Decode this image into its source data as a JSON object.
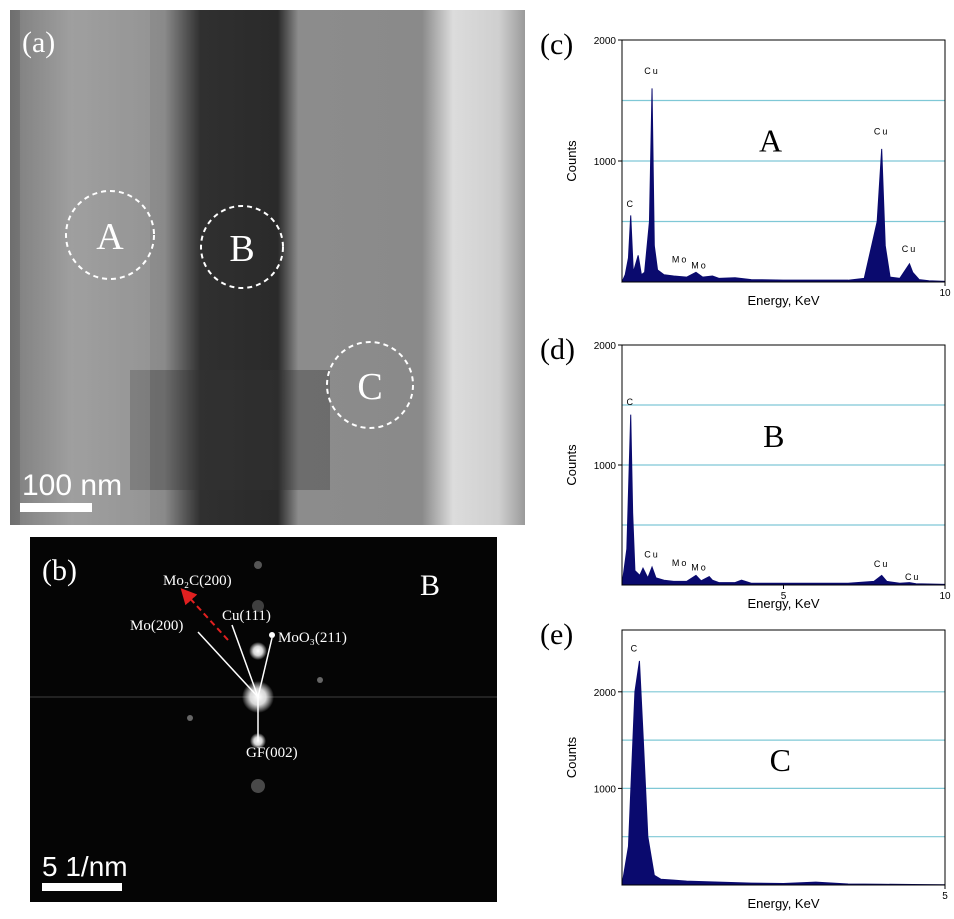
{
  "panel_a": {
    "label": "(a)",
    "regions": [
      "A",
      "B",
      "C"
    ],
    "scale_bar": "100 nm"
  },
  "panel_b": {
    "label": "(b)",
    "region": "B",
    "scale_bar": "5 1/nm",
    "annotations": [
      "Mo₂C(200)",
      "Cu(111)",
      "Mo(200)",
      "MoO₃(211)",
      "GF(002)"
    ]
  },
  "chart_data": [
    {
      "type": "area",
      "panel": "(c)",
      "label": "A",
      "x_label": "Energy, KeV",
      "y_label": "Counts",
      "color": "#0a0a6e",
      "grid_color": "#7fc8d6",
      "xlim": [
        0,
        10
      ],
      "xticks": [
        10
      ],
      "ylim": [
        0,
        2000
      ],
      "yticks": [
        1000,
        2000
      ],
      "grid_lines": [
        500,
        1000,
        1500
      ],
      "x": [
        0,
        0.1,
        0.2,
        0.27,
        0.35,
        0.5,
        0.6,
        0.7,
        0.85,
        0.93,
        1.0,
        1.1,
        1.3,
        1.6,
        2.0,
        2.29,
        2.5,
        2.8,
        3.0,
        3.5,
        4,
        5,
        6,
        7,
        7.5,
        7.9,
        8.04,
        8.15,
        8.3,
        8.6,
        8.9,
        9.0,
        9.2,
        9.5,
        10
      ],
      "values": [
        0,
        60,
        200,
        550,
        80,
        220,
        60,
        80,
        500,
        1600,
        300,
        100,
        60,
        50,
        40,
        80,
        40,
        50,
        30,
        35,
        20,
        15,
        15,
        15,
        30,
        500,
        1100,
        300,
        40,
        30,
        150,
        80,
        20,
        10,
        5
      ],
      "annotations": [
        {
          "text": "C",
          "x": 0.27,
          "y": 620
        },
        {
          "text": "Cu",
          "x": 0.93,
          "y": 1720
        },
        {
          "text": "Mo",
          "x": 1.8,
          "y": 160
        },
        {
          "text": "Mo",
          "x": 2.4,
          "y": 110
        },
        {
          "text": "Cu",
          "x": 8.04,
          "y": 1220
        },
        {
          "text": "Cu",
          "x": 8.9,
          "y": 250
        }
      ],
      "label_pos": [
        4.6,
        1080
      ]
    },
    {
      "type": "area",
      "panel": "(d)",
      "label": "B",
      "x_label": "Energy, KeV",
      "y_label": "Counts",
      "color": "#0a0a6e",
      "grid_color": "#7fc8d6",
      "xlim": [
        0,
        10
      ],
      "xticks": [
        5,
        10
      ],
      "ylim": [
        0,
        2000
      ],
      "yticks": [
        1000,
        2000
      ],
      "grid_lines": [
        500,
        1000,
        1500
      ],
      "x": [
        0,
        0.15,
        0.27,
        0.33,
        0.4,
        0.55,
        0.65,
        0.8,
        0.93,
        1.05,
        1.3,
        1.6,
        2.0,
        2.29,
        2.45,
        2.7,
        2.8,
        3.0,
        3.5,
        3.7,
        4,
        5,
        6,
        7,
        7.8,
        8.04,
        8.2,
        8.6,
        8.9,
        9.1,
        10
      ],
      "values": [
        0,
        300,
        1420,
        600,
        120,
        80,
        140,
        60,
        150,
        60,
        40,
        30,
        30,
        80,
        35,
        70,
        40,
        20,
        20,
        40,
        15,
        15,
        15,
        15,
        30,
        80,
        30,
        15,
        20,
        10,
        5
      ],
      "annotations": [
        {
          "text": "C",
          "x": 0.27,
          "y": 1500
        },
        {
          "text": "Cu",
          "x": 0.93,
          "y": 230
        },
        {
          "text": "Mo",
          "x": 1.8,
          "y": 160
        },
        {
          "text": "Mo",
          "x": 2.4,
          "y": 120
        },
        {
          "text": "Cu",
          "x": 8.04,
          "y": 150
        },
        {
          "text": "Cu",
          "x": 9.0,
          "y": 40
        }
      ],
      "label_pos": [
        4.7,
        1150
      ]
    },
    {
      "type": "area",
      "panel": "(e)",
      "label": "C",
      "x_label": "Energy, KeV",
      "y_label": "Counts",
      "color": "#0a0a6e",
      "grid_color": "#7fc8d6",
      "xlim": [
        0,
        5
      ],
      "xticks": [
        5
      ],
      "ylim": [
        0,
        2640
      ],
      "yticks": [
        1000,
        2000
      ],
      "grid_lines": [
        500,
        1000,
        1500,
        2000
      ],
      "x": [
        0,
        0.1,
        0.2,
        0.27,
        0.33,
        0.4,
        0.5,
        0.6,
        0.8,
        1.0,
        1.5,
        2.0,
        2.5,
        3.0,
        3.5,
        4.0,
        4.5,
        5
      ],
      "values": [
        0,
        400,
        2000,
        2320,
        1500,
        500,
        100,
        60,
        50,
        40,
        30,
        20,
        15,
        30,
        10,
        8,
        5,
        3
      ],
      "annotations": [
        {
          "text": "C",
          "x": 0.2,
          "y": 2420
        }
      ],
      "label_pos": [
        2.45,
        1180
      ]
    }
  ]
}
